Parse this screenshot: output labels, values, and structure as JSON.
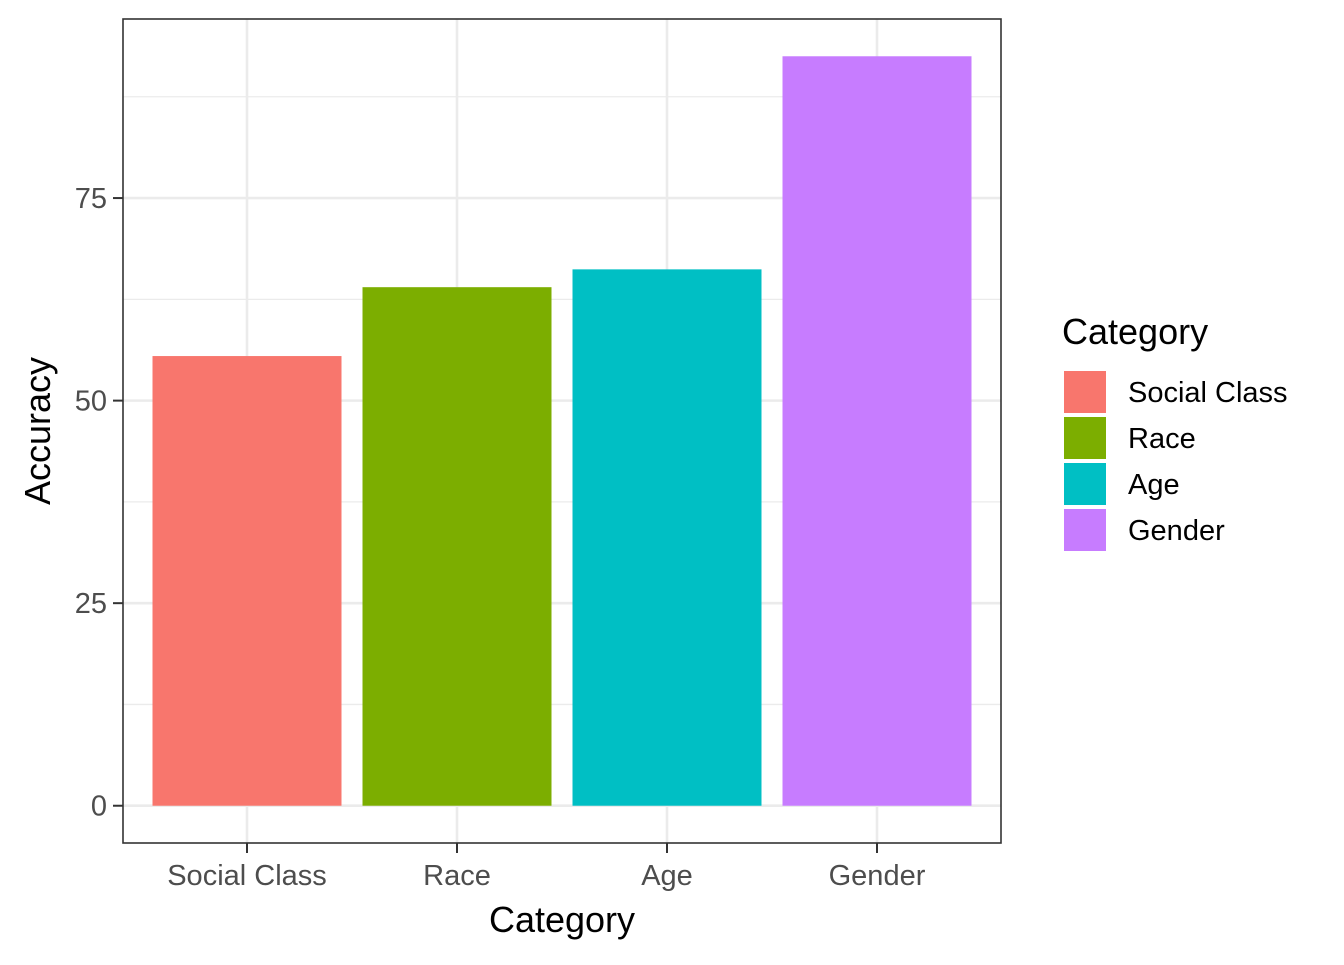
{
  "chart_data": {
    "type": "bar",
    "categories": [
      "Social Class",
      "Race",
      "Age",
      "Gender"
    ],
    "values": [
      55.5,
      64.0,
      66.2,
      92.5
    ],
    "colors": [
      "#F8766D",
      "#7CAE00",
      "#00BFC4",
      "#C77CFF"
    ],
    "xlabel": "Category",
    "ylabel": "Accuracy",
    "ylim": [
      -4.6,
      97.1
    ],
    "yticks": [
      0,
      25,
      50,
      75
    ],
    "ytick_labels": [
      "0",
      "25",
      "50",
      "75"
    ],
    "grid": true,
    "legend": {
      "title": "Category",
      "position": "right",
      "entries": [
        "Social Class",
        "Race",
        "Age",
        "Gender"
      ]
    }
  }
}
